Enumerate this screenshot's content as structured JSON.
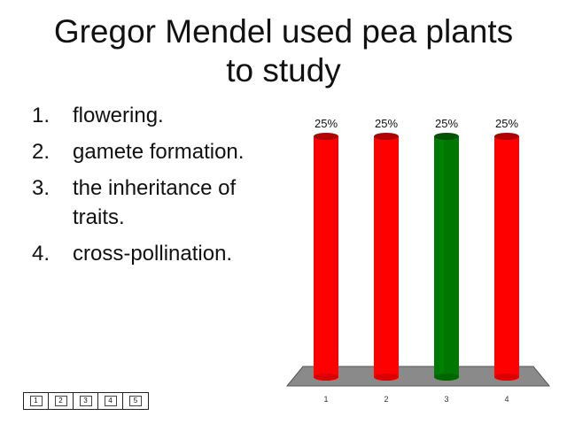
{
  "slide": {
    "title_line1": "Gregor Mendel used pea plants",
    "title_line2": "to study",
    "choices": [
      {
        "num": "1.",
        "text": "flowering."
      },
      {
        "num": "2.",
        "text": "gamete formation."
      },
      {
        "num": "3.",
        "text": "the inheritance of traits."
      },
      {
        "num": "4.",
        "text": "cross-pollination."
      }
    ],
    "keypad": [
      "1",
      "2",
      "3",
      "4",
      "5"
    ]
  },
  "chart_data": {
    "type": "bar",
    "categories": [
      "1",
      "2",
      "3",
      "4"
    ],
    "values": [
      25,
      25,
      25,
      25
    ],
    "data_labels": [
      "25%",
      "25%",
      "25%",
      "25%"
    ],
    "ylim": [
      0,
      25
    ],
    "unit": "%",
    "colors": [
      "#ff0000",
      "#ff0000",
      "#007700",
      "#ff0000"
    ],
    "correct_color": "#007700",
    "base_color": "#8a8a8a",
    "grid": false,
    "title": "",
    "xlabel": "",
    "ylabel": ""
  }
}
